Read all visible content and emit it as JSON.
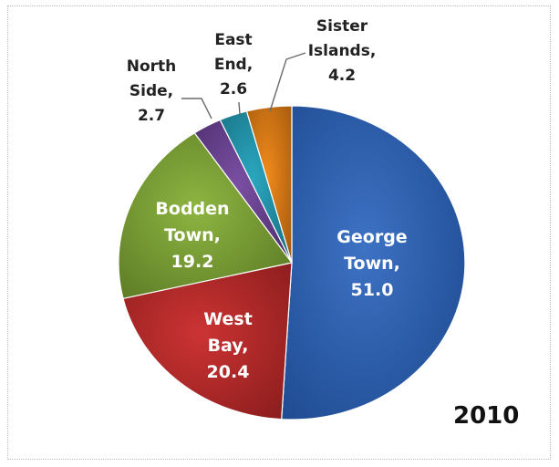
{
  "chart_data": {
    "type": "pie",
    "annotation": "2010",
    "slices": [
      {
        "label": [
          "George",
          "Town,",
          "51.0"
        ],
        "value": 51.0,
        "color": "#3d72c4",
        "dark": "#1f4b91",
        "label_inside": true
      },
      {
        "label": [
          "West",
          "Bay,",
          "20.4"
        ],
        "value": 20.4,
        "color": "#cc3333",
        "dark": "#8e1e1e",
        "label_inside": true
      },
      {
        "label": [
          "Bodden",
          "Town,",
          "19.2"
        ],
        "value": 19.2,
        "color": "#8db541",
        "dark": "#5e7c26",
        "label_inside": true
      },
      {
        "label": [
          "North",
          "Side,",
          "2.7"
        ],
        "value": 2.7,
        "color": "#7a4fa3",
        "dark": "#4e2f6e",
        "label_inside": false
      },
      {
        "label": [
          "East",
          "End,",
          "2.6"
        ],
        "value": 2.6,
        "color": "#2aa7c0",
        "dark": "#187082",
        "label_inside": false
      },
      {
        "label": [
          "Sister",
          "Islands,",
          "4.2"
        ],
        "value": 4.2,
        "color": "#f08a1c",
        "dark": "#a85c0e",
        "label_inside": false
      }
    ]
  }
}
